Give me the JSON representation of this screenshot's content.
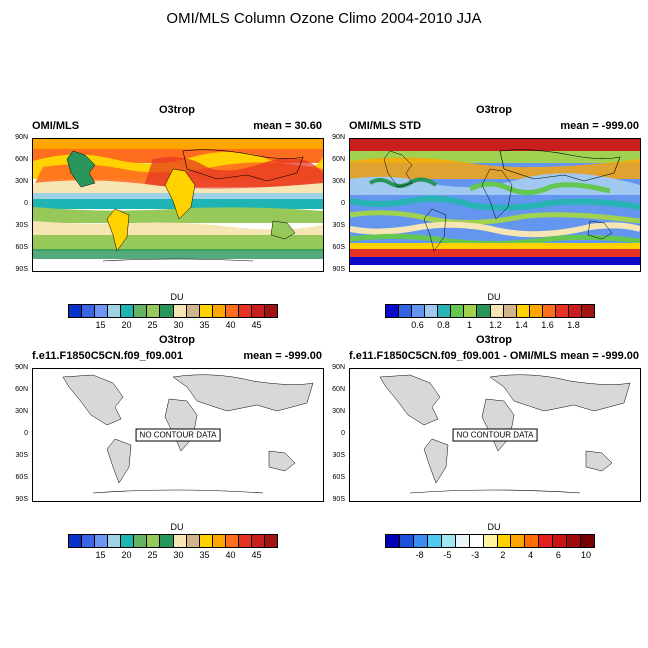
{
  "figure_title": "OMI/MLS Column Ozone Climo 2004-2010 JJA",
  "lat_ticks": [
    "90N",
    "60N",
    "30N",
    "0",
    "30S",
    "60S",
    "90S"
  ],
  "colors": {
    "ocean_land_gray": "#d8d8d8",
    "coast": "#000000"
  },
  "panels": [
    {
      "title": "O3trop",
      "left_label": "OMI/MLS",
      "right_label": "mean =  30.60",
      "unit": "DU",
      "no_data": "",
      "colorbar": {
        "colors": [
          "#0a32c8",
          "#3c64e6",
          "#6e96f0",
          "#a0d2e6",
          "#1eb4b4",
          "#64b464",
          "#96c85a",
          "#28965a",
          "#f5e6b4",
          "#d2b48c",
          "#ffd200",
          "#ffa500",
          "#ff6e1e",
          "#e63223",
          "#c81e1e",
          "#a01414"
        ],
        "labels": [
          "15",
          "20",
          "25",
          "30",
          "35",
          "40",
          "45"
        ]
      }
    },
    {
      "title": "O3trop",
      "left_label": "OMI/MLS STD",
      "right_label": "mean = -999.00",
      "unit": "DU",
      "no_data": "",
      "colorbar": {
        "colors": [
          "#0a0ac8",
          "#3264e6",
          "#6496f0",
          "#a0c8f0",
          "#28b4b4",
          "#64c850",
          "#a0d250",
          "#28965a",
          "#f5e6b4",
          "#d2b48c",
          "#ffd200",
          "#ffa500",
          "#ff6e1e",
          "#e63223",
          "#c81e1e",
          "#a01414"
        ],
        "labels": [
          "0.6",
          "0.8",
          "1",
          "1.2",
          "1.4",
          "1.6",
          "1.8"
        ]
      }
    },
    {
      "title": "O3trop",
      "left_label": "f.e11.F1850C5CN.f09_f09.001",
      "right_label": "mean = -999.00",
      "unit": "DU",
      "no_data": "NO CONTOUR DATA",
      "colorbar": {
        "colors": [
          "#0a32c8",
          "#3c64e6",
          "#6e96f0",
          "#a0d2e6",
          "#1eb4b4",
          "#64b464",
          "#96c85a",
          "#28965a",
          "#f5e6b4",
          "#d2b48c",
          "#ffd200",
          "#ffa500",
          "#ff6e1e",
          "#e63223",
          "#c81e1e",
          "#a01414"
        ],
        "labels": [
          "15",
          "20",
          "25",
          "30",
          "35",
          "40",
          "45"
        ]
      }
    },
    {
      "title": "O3trop",
      "left_label": "f.e11.F1850C5CN.f09_f09.001 - OMI/MLS",
      "right_label": "mean = -999.00",
      "unit": "DU",
      "no_data": "NO CONTOUR DATA",
      "colorbar": {
        "colors": [
          "#0000b4",
          "#1e50dc",
          "#3c8cf0",
          "#50c8f0",
          "#a0e6f0",
          "#e6f5f5",
          "#ffffff",
          "#fff5a0",
          "#ffd200",
          "#ffa500",
          "#ff6e00",
          "#e61e1e",
          "#c81414",
          "#a00a0a",
          "#780000"
        ],
        "labels": [
          "-8",
          "-5",
          "-3",
          "2",
          "4",
          "6",
          "10"
        ]
      }
    }
  ],
  "chart_data": [
    {
      "type": "heatmap",
      "title": "O3trop",
      "subtitle": "OMI/MLS",
      "mean": 30.6,
      "colorbar_unit": "DU",
      "levels": [
        15,
        20,
        25,
        30,
        35,
        40,
        45
      ],
      "ylabels": [
        "90N",
        "60N",
        "30N",
        "0",
        "30S",
        "60S",
        "90S"
      ]
    },
    {
      "type": "heatmap",
      "title": "O3trop",
      "subtitle": "OMI/MLS STD",
      "mean": -999.0,
      "colorbar_unit": "DU",
      "levels": [
        0.6,
        0.8,
        1,
        1.2,
        1.4,
        1.6,
        1.8
      ],
      "ylabels": [
        "90N",
        "60N",
        "30N",
        "0",
        "30S",
        "60S",
        "90S"
      ]
    },
    {
      "type": "heatmap",
      "title": "O3trop",
      "subtitle": "f.e11.F1850C5CN.f09_f09.001",
      "mean": -999.0,
      "colorbar_unit": "DU",
      "levels": [
        15,
        20,
        25,
        30,
        35,
        40,
        45
      ],
      "ylabels": [
        "90N",
        "60N",
        "30N",
        "0",
        "30S",
        "60S",
        "90S"
      ],
      "annotation": "NO CONTOUR DATA"
    },
    {
      "type": "heatmap",
      "title": "O3trop",
      "subtitle": "f.e11.F1850C5CN.f09_f09.001 - OMI/MLS",
      "mean": -999.0,
      "colorbar_unit": "DU",
      "levels": [
        -8,
        -5,
        -3,
        2,
        4,
        6,
        10
      ],
      "ylabels": [
        "90N",
        "60N",
        "30N",
        "0",
        "30S",
        "60S",
        "90S"
      ],
      "annotation": "NO CONTOUR DATA"
    }
  ]
}
